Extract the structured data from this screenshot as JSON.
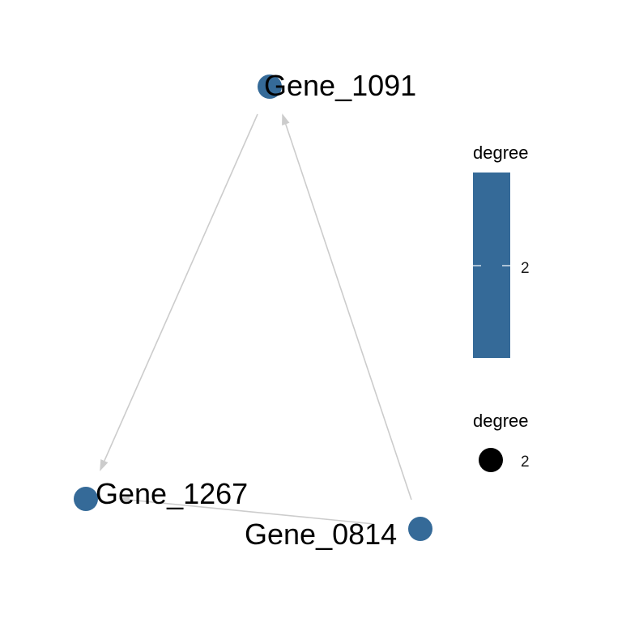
{
  "chart_data": {
    "type": "network",
    "nodes": [
      {
        "id": "Gene_1091",
        "label": "Gene_1091",
        "degree": 2
      },
      {
        "id": "Gene_1267",
        "label": "Gene_1267",
        "degree": 2
      },
      {
        "id": "Gene_0814",
        "label": "Gene_0814",
        "degree": 2
      }
    ],
    "edges": [
      {
        "from": "Gene_1091",
        "to": "Gene_1267"
      },
      {
        "from": "Gene_0814",
        "to": "Gene_1091"
      },
      {
        "from": "Gene_0814",
        "to": "Gene_1267"
      }
    ],
    "legend_color": {
      "title": "degree",
      "ticks": [
        2
      ]
    },
    "legend_size": {
      "title": "degree",
      "values": [
        2
      ]
    },
    "colors": {
      "node": "#356A98",
      "edge": "#CCCCCC",
      "legend_point": "#000000"
    }
  }
}
